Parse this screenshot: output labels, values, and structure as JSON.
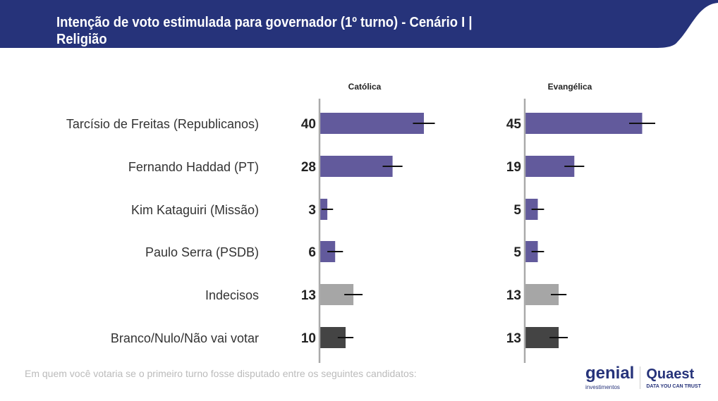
{
  "header": {
    "title": "Intenção de voto estimulada para governador (1º turno) - Cenário I | Religião"
  },
  "footer": {
    "question": "Em quem você votaria se o primeiro turno fosse disputado entre os seguintes candidatos:"
  },
  "logos": {
    "genial": "genial",
    "genial_sub": "investimentos",
    "quaest": "Quaest",
    "quaest_sub": "DATA YOU CAN TRUST"
  },
  "colors": {
    "banner": "#26337a",
    "candidate": "#625a9c",
    "undecided": "#a6a6a6",
    "blank": "#444444"
  },
  "chart_data": {
    "type": "bar",
    "orientation": "horizontal",
    "categories": [
      "Tarcísio de Freitas (Republicanos)",
      "Fernando Haddad (PT)",
      "Kim Kataguiri (Missão)",
      "Paulo Serra (PSDB)",
      "Indecisos",
      "Branco/Nulo/Não vai votar"
    ],
    "category_colors": [
      "#625a9c",
      "#625a9c",
      "#625a9c",
      "#625a9c",
      "#a6a6a6",
      "#444444"
    ],
    "error_bars": true,
    "panels": [
      {
        "name": "Católica",
        "values": [
          40,
          28,
          3,
          6,
          13,
          10
        ]
      },
      {
        "name": "Evangélica",
        "values": [
          45,
          19,
          5,
          5,
          13,
          13
        ]
      }
    ]
  }
}
